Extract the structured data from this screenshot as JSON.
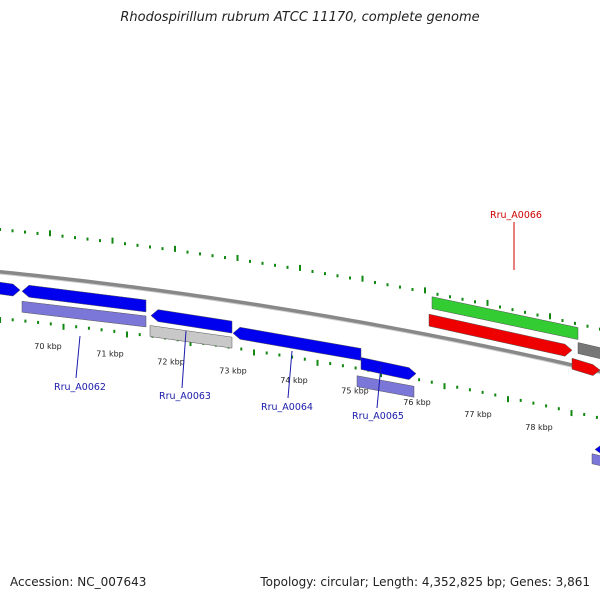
{
  "title": "Rhodospirillum rubrum ATCC 11170, complete genome",
  "footer": {
    "accession": "Accession: NC_007643",
    "topology": "Topology: circular; Length: 4,352,825 bp; Genes: 3,861"
  },
  "colors": {
    "forward_gene": "#0000ee",
    "reverse_gene": "#0000ee",
    "cds_forward": "#7b77d8",
    "cds_pseudo": "#c8c8c8",
    "rrna_gene": "#33cc33",
    "rrna": "#ee0000",
    "backbone": "#888888",
    "ticks": "#118811",
    "gene_label": "#1a1aaa",
    "rna_label": "#cc0000"
  },
  "kbp_labels": [
    "70 kbp",
    "71 kbp",
    "72 kbp",
    "73 kbp",
    "74 kbp",
    "75 kbp",
    "76 kbp",
    "77 kbp",
    "78 kbp"
  ],
  "gene_labels": [
    {
      "text": "Rru_A0062",
      "type": "gene"
    },
    {
      "text": "Rru_A0063",
      "type": "gene"
    },
    {
      "text": "Rru_A0064",
      "type": "gene"
    },
    {
      "text": "Rru_A0065",
      "type": "gene"
    },
    {
      "text": "Rru_A0066",
      "type": "rna"
    }
  ]
}
